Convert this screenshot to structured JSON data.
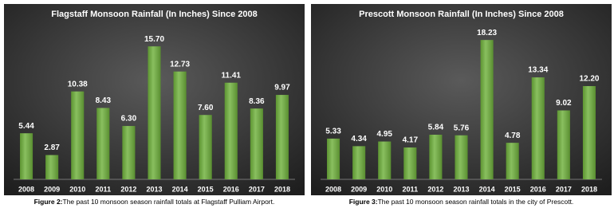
{
  "chart_data": [
    {
      "type": "bar",
      "title": "Flagstaff Monsoon Rainfall (In Inches) Since 2008",
      "categories": [
        "2008",
        "2009",
        "2010",
        "2011",
        "2012",
        "2013",
        "2014",
        "2015",
        "2016",
        "2017",
        "2018"
      ],
      "values": [
        5.44,
        2.87,
        10.38,
        8.43,
        6.3,
        15.7,
        12.73,
        7.6,
        11.41,
        8.36,
        9.97
      ],
      "value_labels": [
        "5.44",
        "2.87",
        "10.38",
        "8.43",
        "6.30",
        "15.70",
        "12.73",
        "7.60",
        "11.41",
        "8.36",
        "9.97"
      ],
      "color": "#6fb13c",
      "ylim": [
        0,
        17.6
      ]
    },
    {
      "type": "bar",
      "title": "Prescott Monsoon Rainfall (In Inches) Since 2008",
      "categories": [
        "2008",
        "2009",
        "2010",
        "2011",
        "2012",
        "2013",
        "2014",
        "2015",
        "2016",
        "2017",
        "2018"
      ],
      "values": [
        5.33,
        4.34,
        4.95,
        4.17,
        5.84,
        5.76,
        18.23,
        4.78,
        13.34,
        9.02,
        12.2
      ],
      "value_labels": [
        "5.33",
        "4.34",
        "4.95",
        "4.17",
        "5.84",
        "5.76",
        "18.23",
        "4.78",
        "13.34",
        "9.02",
        "12.20"
      ],
      "color": "#6fb13c",
      "ylim": [
        0,
        19.5
      ]
    }
  ],
  "captions": [
    {
      "label": "Figure 2:",
      "text": "The past 10 monsoon season rainfall totals at Flagstaff Pulliam Airport."
    },
    {
      "label": "Figure 3:",
      "text": "The past 10 monsoon season rainfall totals in the city of Prescott."
    }
  ]
}
